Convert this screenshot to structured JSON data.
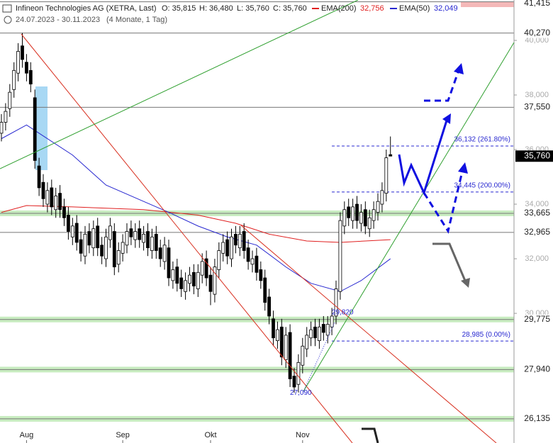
{
  "chart_data": {
    "type": "candlestick",
    "title": "Infineon Technologies AG (XETRA, Last)",
    "quote": [
      "O: 35,815",
      "H: 36,480",
      "L: 35,760",
      "C: 35,760"
    ],
    "subtitle": "24.07.2023 - 30.11.2023",
    "period": "(4 Monate, 1 Tag)",
    "xlim": [
      -0.34,
      122.54
    ],
    "ylim": [
      25.25,
      41.48
    ],
    "xticks": [
      {
        "value": 6,
        "label": "Aug"
      },
      {
        "value": 29,
        "label": "Sep"
      },
      {
        "value": 50,
        "label": "Okt"
      },
      {
        "value": 72,
        "label": "Nov"
      }
    ],
    "yticks": [
      {
        "value": 40,
        "label": "40,000"
      },
      {
        "value": 38,
        "label": "38,000"
      },
      {
        "value": 36,
        "label": "36,000"
      },
      {
        "value": 34,
        "label": "34,000"
      },
      {
        "value": 32,
        "label": "32,000"
      },
      {
        "value": 30,
        "label": "30,000"
      }
    ],
    "up_color": "#ffffff",
    "down_color": "#000000",
    "open": [
      36.6,
      37.0,
      37.5,
      38.2,
      38.8,
      39.8,
      39.2,
      38.9,
      37.9,
      35.4,
      34.8,
      34.0,
      34.6,
      33.8,
      34.4,
      33.9,
      33.6,
      32.8,
      33.3,
      32.7,
      32.1,
      33.0,
      32.4,
      33.2,
      32.5,
      32.0,
      32.7,
      33.0,
      31.8,
      32.2,
      32.5,
      33.1,
      32.7,
      33.1,
      32.6,
      33.0,
      32.3,
      32.9,
      32.4,
      31.9,
      32.4,
      31.2,
      31.7,
      31.3,
      30.8,
      31.1,
      31.5,
      30.9,
      31.4,
      32.0,
      31.4,
      30.7,
      31.6,
      32.2,
      32.7,
      32.0,
      32.9,
      32.4,
      33.0,
      32.4,
      31.8,
      32.1,
      31.6,
      31.3,
      30.6,
      29.8,
      29.0,
      29.5,
      28.3,
      29.3,
      27.7,
      27.4,
      28.1,
      28.7,
      29.1,
      29.5,
      29.0,
      29.6,
      29.2,
      29.5,
      29.9,
      30.8,
      33.2,
      33.9,
      33.4,
      34.0,
      33.3,
      33.8,
      33.1,
      33.4,
      33.7,
      34.0,
      34.4,
      35.815
    ],
    "high": [
      37.3,
      37.7,
      38.4,
      39.2,
      39.9,
      40.27,
      39.5,
      39.2,
      38.2,
      35.7,
      35.1,
      34.8,
      34.9,
      34.6,
      34.7,
      34.2,
      33.9,
      33.5,
      33.6,
      33.0,
      33.2,
      33.3,
      33.4,
      33.5,
      32.8,
      33.1,
      33.5,
      33.3,
      32.6,
      32.9,
      33.3,
      33.4,
      33.3,
      33.4,
      33.2,
      33.3,
      33.1,
      33.2,
      32.7,
      32.8,
      32.7,
      31.9,
      32.0,
      31.6,
      31.5,
      31.7,
      31.8,
      31.8,
      32.2,
      32.3,
      31.7,
      32.0,
      32.6,
      32.9,
      33.0,
      33.1,
      33.2,
      33.2,
      33.3,
      32.7,
      32.3,
      32.4,
      31.9,
      31.6,
      30.9,
      30.1,
      29.7,
      29.8,
      29.5,
      29.6,
      28.0,
      28.5,
      29.1,
      29.5,
      29.7,
      29.8,
      29.8,
      29.9,
      29.9,
      30.2,
      31.2,
      33.7,
      34.1,
      34.2,
      34.2,
      34.3,
      34.0,
      34.1,
      33.8,
      34.1,
      34.4,
      34.8,
      36.0,
      36.48
    ],
    "low": [
      36.3,
      36.7,
      37.2,
      37.9,
      38.5,
      39.0,
      38.5,
      38.1,
      35.3,
      34.3,
      33.9,
      33.7,
      33.6,
      33.5,
      33.5,
      33.2,
      32.7,
      32.5,
      32.3,
      31.9,
      31.8,
      32.2,
      32.1,
      32.1,
      31.8,
      31.7,
      32.4,
      31.4,
      31.5,
      31.9,
      32.2,
      32.5,
      32.4,
      32.4,
      32.3,
      32.1,
      32.0,
      32.0,
      31.7,
      31.6,
      31.0,
      30.9,
      30.8,
      30.6,
      30.5,
      30.8,
      30.7,
      30.6,
      31.1,
      31.0,
      30.3,
      30.4,
      31.3,
      31.9,
      31.8,
      31.7,
      32.2,
      32.1,
      32.0,
      31.6,
      31.5,
      31.2,
      30.9,
      30.1,
      29.6,
      28.8,
      28.7,
      28.1,
      28.0,
      27.3,
      27.09,
      27.1,
      27.8,
      28.4,
      28.8,
      28.8,
      28.7,
      29.0,
      28.9,
      29.2,
      29.6,
      30.5,
      32.9,
      33.2,
      33.1,
      33.1,
      33.0,
      32.9,
      32.8,
      33.1,
      33.4,
      33.7,
      34.1,
      35.76
    ],
    "close": [
      37.0,
      37.4,
      38.1,
      38.9,
      39.6,
      39.3,
      38.8,
      38.4,
      35.6,
      34.6,
      34.2,
      34.5,
      33.9,
      34.3,
      33.8,
      33.5,
      33.0,
      33.2,
      32.6,
      32.2,
      32.9,
      32.5,
      33.1,
      32.4,
      32.1,
      32.8,
      33.2,
      31.7,
      32.3,
      32.6,
      33.0,
      32.8,
      33.0,
      32.7,
      32.9,
      32.4,
      32.8,
      32.3,
      32.0,
      32.5,
      31.3,
      31.6,
      31.1,
      30.9,
      31.2,
      31.4,
      31.0,
      31.5,
      31.9,
      31.3,
      30.8,
      31.7,
      32.3,
      32.6,
      32.1,
      32.8,
      32.5,
      32.9,
      32.3,
      31.9,
      32.0,
      31.5,
      31.2,
      30.4,
      29.9,
      29.1,
      29.4,
      28.4,
      29.2,
      27.6,
      27.3,
      28.2,
      28.8,
      29.2,
      29.4,
      29.1,
      29.5,
      29.3,
      29.6,
      29.9,
      30.9,
      33.4,
      33.8,
      33.5,
      33.9,
      33.4,
      33.7,
      33.2,
      33.5,
      33.8,
      34.1,
      34.5,
      35.7,
      35.76
    ],
    "series": [
      {
        "name": "EMA(200)",
        "legend_value": "32,756",
        "color": "#e02020",
        "x": [
          0,
          6,
          17,
          34,
          47,
          56,
          64,
          73,
          81,
          93
        ],
        "values": [
          33.7,
          33.95,
          33.9,
          33.8,
          33.6,
          33.3,
          32.9,
          32.65,
          32.6,
          32.7
        ]
      },
      {
        "name": "EMA(50)",
        "legend_value": "32,049",
        "color": "#2828d0",
        "x": [
          0,
          6,
          10,
          17,
          25,
          34,
          40,
          47,
          54,
          61,
          68,
          74,
          81,
          86,
          93
        ],
        "values": [
          36.4,
          36.9,
          36.5,
          35.8,
          34.7,
          34.1,
          33.7,
          33.2,
          32.8,
          32.5,
          31.7,
          31.1,
          30.8,
          31.2,
          32.0
        ]
      }
    ],
    "levels": [
      {
        "value": 41.415,
        "label": "41,415",
        "band": false
      },
      {
        "value": 40.27,
        "label": "40,270",
        "band": false
      },
      {
        "value": 37.55,
        "label": "37,550",
        "band": false
      },
      {
        "value": 33.665,
        "label": "33,665",
        "band": true
      },
      {
        "value": 32.965,
        "label": "32,965",
        "band": false
      },
      {
        "value": 29.775,
        "label": "29,775",
        "band": true
      },
      {
        "value": 27.94,
        "label": "27,940",
        "band": true
      },
      {
        "value": 26.135,
        "label": "26,135",
        "band": true
      }
    ],
    "last_price": {
      "value": 35.76,
      "label": "35,760"
    },
    "fib_levels": [
      {
        "value": 36.132,
        "label": "36,132 (261.80%)"
      },
      {
        "value": 34.445,
        "label": "34,445 (200.00%)"
      },
      {
        "value": 28.985,
        "label": "28,985 (0.00%)"
      }
    ],
    "pivots": [
      {
        "x": 80,
        "value": 29.82,
        "label": "29,820"
      },
      {
        "x": 70,
        "value": 27.09,
        "label": "27,090"
      }
    ]
  }
}
